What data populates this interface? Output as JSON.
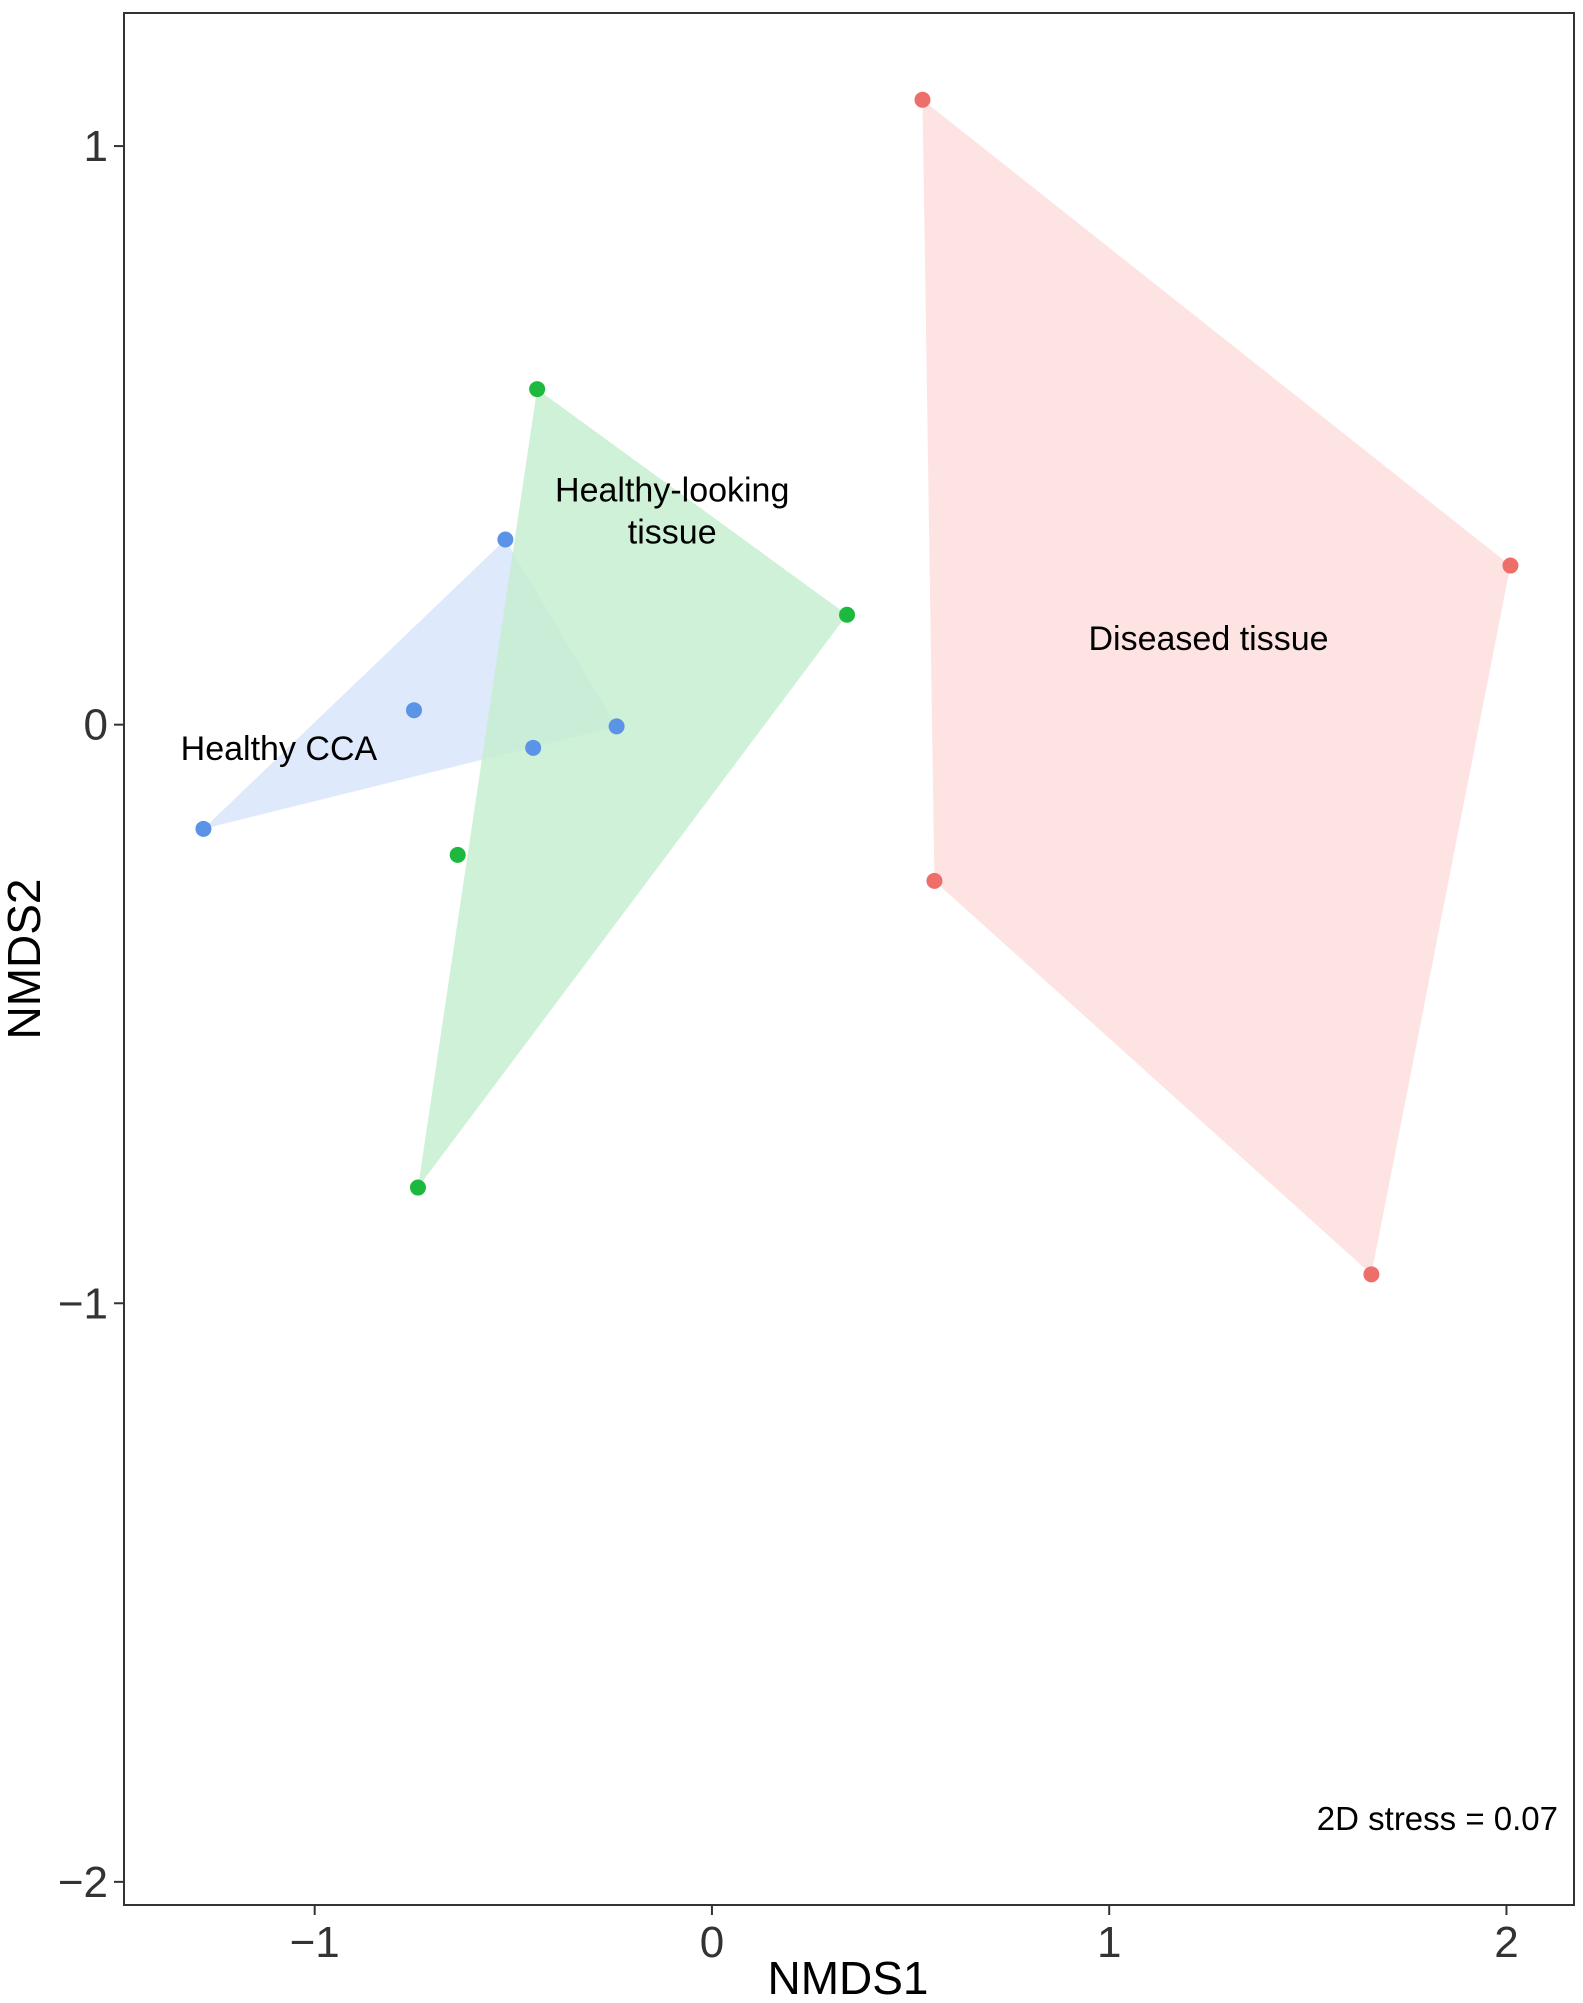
{
  "chart_data": {
    "type": "scatter",
    "title": "",
    "xlabel": "NMDS1",
    "ylabel": "NMDS2",
    "xlim": [
      -1.48,
      2.17
    ],
    "ylim": [
      -2.04,
      1.23
    ],
    "x_ticks": [
      -1,
      0,
      1,
      2
    ],
    "y_ticks": [
      -2,
      -1,
      0,
      1
    ],
    "x_tick_labels": [
      "−1",
      "0",
      "1",
      "2"
    ],
    "y_tick_labels": [
      "−2",
      "−1",
      "0",
      "1"
    ],
    "grid": false,
    "legend": "none",
    "series": [
      {
        "name": "Healthy CCA",
        "label_lines": [
          "Healthy CCA"
        ],
        "label_at": [
          -1.09,
          -0.04
        ],
        "color": "#5B94E6",
        "fill": "#D6E4FA",
        "x": [
          -1.28,
          -0.75,
          -0.52,
          -0.45,
          -0.24
        ],
        "y": [
          -0.18,
          0.025,
          0.32,
          -0.04,
          -0.003
        ],
        "hull": [
          [
            -1.28,
            -0.18
          ],
          [
            -0.52,
            0.32
          ],
          [
            -0.24,
            -0.003
          ]
        ]
      },
      {
        "name": "Healthy-looking tissue",
        "label_lines": [
          "Healthy-looking",
          "tissue"
        ],
        "label_at": [
          -0.1,
          0.37
        ],
        "color": "#1DB83E",
        "fill": "#C3EDCE",
        "x": [
          -0.44,
          0.34,
          -0.64,
          -0.74
        ],
        "y": [
          0.58,
          0.19,
          -0.225,
          -0.8
        ],
        "hull": [
          [
            -0.44,
            0.58
          ],
          [
            0.34,
            0.19
          ],
          [
            -0.74,
            -0.8
          ]
        ]
      },
      {
        "name": "Diseased tissue",
        "label_lines": [
          "Diseased tissue"
        ],
        "label_at": [
          1.25,
          0.15
        ],
        "color": "#EE6F6A",
        "fill": "#FCDDDC",
        "x": [
          0.53,
          2.01,
          0.56,
          1.66
        ],
        "y": [
          1.08,
          0.275,
          -0.27,
          -0.95
        ],
        "hull": [
          [
            0.53,
            1.08
          ],
          [
            2.01,
            0.275
          ],
          [
            1.66,
            -0.95
          ],
          [
            0.56,
            -0.27
          ]
        ]
      }
    ],
    "annotation": "2D stress = 0.07"
  }
}
